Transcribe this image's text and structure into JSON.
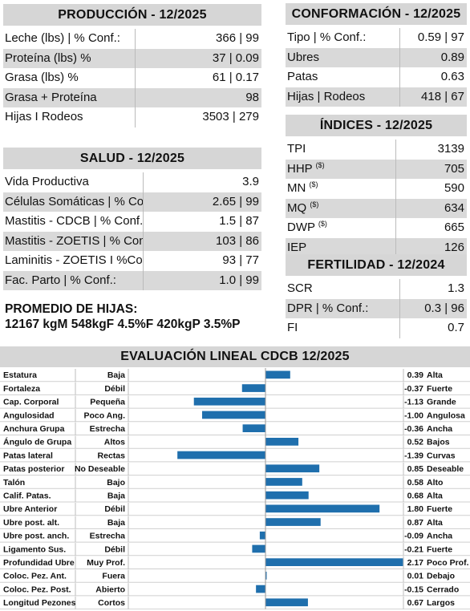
{
  "produccion": {
    "title": "PRODUCCIÓN - 12/2025",
    "rows": [
      {
        "label": "Leche (lbs) | % Conf.:",
        "value": "366 | 99"
      },
      {
        "label": "Proteína (lbs) %",
        "value": "37 | 0.09"
      },
      {
        "label": "Grasa (lbs) %",
        "value": "61 | 0.17"
      },
      {
        "label": "Grasa + Proteína",
        "value": "98"
      },
      {
        "label": "Hijas I Rodeos",
        "value": "3503 | 279"
      }
    ]
  },
  "salud": {
    "title": "SALUD - 12/2025",
    "rows": [
      {
        "label": "Vida Productiva",
        "value": "3.9"
      },
      {
        "label": "Células Somáticas | % Conf.:",
        "value": "2.65 | 99"
      },
      {
        "label": "Mastitis - CDCB | % Conf.:",
        "value": "1.5 | 87"
      },
      {
        "label": "Mastitis - ZOETIS | % Conf.:",
        "value": "103 | 86"
      },
      {
        "label": "Laminitis - ZOETIS I %Conf.:",
        "value": "93 | 77"
      },
      {
        "label": "Fac. Parto | % Conf.:",
        "value": "1.0 | 99"
      }
    ]
  },
  "promedio": {
    "title": "PROMEDIO DE HIJAS:",
    "values": "12167 kgM 548kgF 4.5%F 420kgP 3.5%P"
  },
  "conformacion": {
    "title": "CONFORMACIÓN - 12/2025",
    "rows": [
      {
        "label": "Tipo | % Conf.:",
        "value": "0.59 | 97"
      },
      {
        "label": "Ubres",
        "value": "0.89"
      },
      {
        "label": "Patas",
        "value": "0.63"
      },
      {
        "label": "Hijas | Rodeos",
        "value": "418 | 67"
      }
    ]
  },
  "indices": {
    "title": "ÍNDICES - 12/2025",
    "rows": [
      {
        "label": "TPI",
        "sup": "",
        "value": "3139"
      },
      {
        "label": "HHP",
        "sup": "($)",
        "value": "705"
      },
      {
        "label": "MN",
        "sup": "($)",
        "value": "590"
      },
      {
        "label": "MQ",
        "sup": "($)",
        "value": "634"
      },
      {
        "label": "DWP",
        "sup": "($)",
        "value": "665"
      },
      {
        "label": "IEP",
        "sup": "",
        "value": "126"
      }
    ]
  },
  "fertilidad": {
    "title": "FERTILIDAD - 12/2024",
    "rows": [
      {
        "label": "SCR",
        "value": "1.3"
      },
      {
        "label": "DPR | % Conf.:",
        "value": "0.3 | 96"
      },
      {
        "label": "FI",
        "value": "0.7"
      }
    ]
  },
  "evaluacion": {
    "title": "EVALUACIÓN LINEAL CDCB 12/2025",
    "bar_color": "#1f6fad",
    "rows": [
      {
        "trait": "Estatura",
        "low": "Baja",
        "value": 0.39,
        "value_label": "0.39",
        "high": "Alta"
      },
      {
        "trait": "Fortaleza",
        "low": "Débil",
        "value": -0.37,
        "value_label": "-0.37",
        "high": "Fuerte"
      },
      {
        "trait": "Cap. Corporal",
        "low": "Pequeña",
        "value": -1.13,
        "value_label": "-1.13",
        "high": "Grande"
      },
      {
        "trait": "Angulosidad",
        "low": "Poco Ang.",
        "value": -1.0,
        "value_label": "-1.00",
        "high": "Angulosa"
      },
      {
        "trait": "Anchura Grupa",
        "low": "Estrecha",
        "value": -0.36,
        "value_label": "-0.36",
        "high": "Ancha"
      },
      {
        "trait": "Ángulo de Grupa",
        "low": "Altos",
        "value": 0.52,
        "value_label": "0.52",
        "high": "Bajos"
      },
      {
        "trait": "Patas lateral",
        "low": "Rectas",
        "value": -1.39,
        "value_label": "-1.39",
        "high": "Curvas"
      },
      {
        "trait": "Patas posterior",
        "low": "No Deseable",
        "value": 0.85,
        "value_label": "0.85",
        "high": "Deseable"
      },
      {
        "trait": "Talón",
        "low": "Bajo",
        "value": 0.58,
        "value_label": "0.58",
        "high": "Alto"
      },
      {
        "trait": "Calif. Patas.",
        "low": "Baja",
        "value": 0.68,
        "value_label": "0.68",
        "high": "Alta"
      },
      {
        "trait": "Ubre Anterior",
        "low": "Débil",
        "value": 1.8,
        "value_label": "1.80",
        "high": "Fuerte"
      },
      {
        "trait": "Ubre post. alt.",
        "low": "Baja",
        "value": 0.87,
        "value_label": "0.87",
        "high": "Alta"
      },
      {
        "trait": "Ubre post. anch.",
        "low": "Estrecha",
        "value": -0.09,
        "value_label": "-0.09",
        "high": "Ancha"
      },
      {
        "trait": "Ligamento Sus.",
        "low": "Débil",
        "value": -0.21,
        "value_label": "-0.21",
        "high": "Fuerte"
      },
      {
        "trait": "Profundidad Ubre",
        "low": "Muy Prof.",
        "value": 2.17,
        "value_label": "2.17",
        "high": "Poco Prof."
      },
      {
        "trait": "Coloc. Pez. Ant.",
        "low": "Fuera",
        "value": 0.01,
        "value_label": "0.01",
        "high": "Debajo"
      },
      {
        "trait": "Coloc. Pez. Post.",
        "low": "Abierto",
        "value": -0.15,
        "value_label": "-0.15",
        "high": "Cerrado"
      },
      {
        "trait": "Longitud Pezones",
        "low": "Cortos",
        "value": 0.67,
        "value_label": "0.67",
        "high": "Largos"
      }
    ]
  }
}
